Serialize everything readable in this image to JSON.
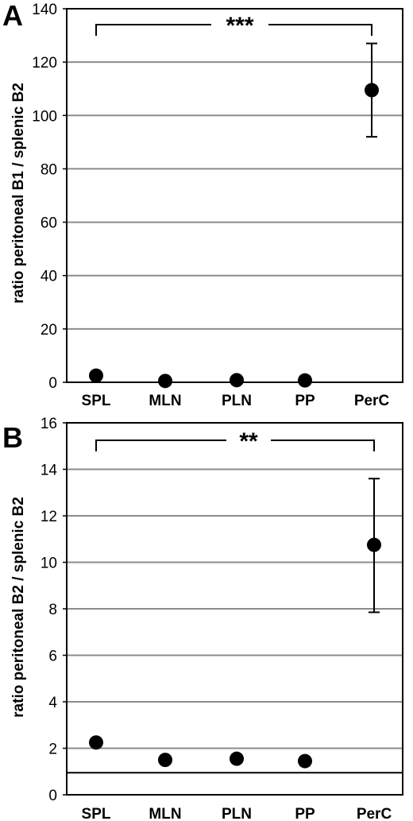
{
  "chart_data": [
    {
      "type": "scatter",
      "panel": "A",
      "ylabel": "ratio peritoneal B1 / splenic B2",
      "xlabel": "",
      "categories": [
        "SPL",
        "MLN",
        "PLN",
        "PP",
        "PerC"
      ],
      "values": [
        2.5,
        0.5,
        0.8,
        0.7,
        109.5
      ],
      "error_upper": [
        null,
        null,
        null,
        null,
        127
      ],
      "error_lower": [
        null,
        null,
        null,
        null,
        92
      ],
      "ylim": [
        0,
        140
      ],
      "yticks": [
        "0",
        "20",
        "40",
        "60",
        "80",
        "100",
        "120",
        "140"
      ],
      "reference_line": null,
      "significance": {
        "from": "SPL",
        "to": "PerC",
        "label": "***"
      },
      "grid": true
    },
    {
      "type": "scatter",
      "panel": "B",
      "ylabel": "ratio peritoneal B2 / splenic B2",
      "xlabel": "",
      "categories": [
        "SPL",
        "MLN",
        "PLN",
        "PP",
        "PerC"
      ],
      "values": [
        2.25,
        1.5,
        1.55,
        1.45,
        10.75
      ],
      "error_upper": [
        null,
        null,
        null,
        null,
        13.6
      ],
      "error_lower": [
        null,
        null,
        null,
        null,
        7.85
      ],
      "ylim": [
        0,
        16
      ],
      "yticks": [
        "0",
        "2",
        "4",
        "6",
        "8",
        "10",
        "12",
        "14",
        "16"
      ],
      "reference_line": 0.95,
      "significance": {
        "from": "SPL",
        "to": "PerC",
        "label": "**"
      },
      "grid": true
    }
  ],
  "colors": {
    "marker": "#000000",
    "grid": "#8c8c8c",
    "axis": "#000000"
  }
}
